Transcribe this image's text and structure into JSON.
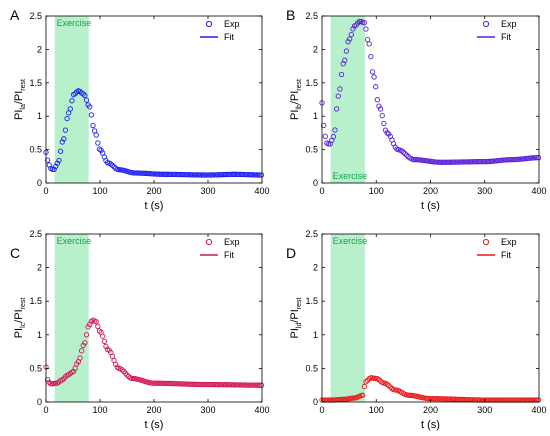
{
  "chart_data": [
    {
      "panel": "A",
      "type": "scatter",
      "color": "#1f1ff0",
      "ylabel": {
        "main": "PI",
        "sub1": "la",
        "sep": "/PI",
        "sub2": "rest"
      },
      "xlabel": "t  (s)",
      "xlim": [
        0,
        400
      ],
      "ylim": [
        0,
        2.5
      ],
      "xticks": [
        "0",
        "100",
        "200",
        "300",
        "400"
      ],
      "yticks": [
        "0",
        "0.5",
        "1",
        "1.5",
        "2",
        "2.5"
      ],
      "exercise": {
        "label": "Exercise",
        "x0": 16,
        "x1": 79,
        "label_pos": "top"
      },
      "legend": {
        "exp": "Exp",
        "fit": "Fit"
      },
      "key_points": [
        [
          0,
          0.46
        ],
        [
          4,
          0.32
        ],
        [
          8,
          0.22
        ],
        [
          14,
          0.2
        ],
        [
          22,
          0.3
        ],
        [
          32,
          0.65
        ],
        [
          42,
          1.05
        ],
        [
          52,
          1.33
        ],
        [
          60,
          1.38
        ],
        [
          70,
          1.33
        ],
        [
          80,
          1.15
        ],
        [
          90,
          0.78
        ],
        [
          100,
          0.5
        ],
        [
          115,
          0.3
        ],
        [
          135,
          0.2
        ],
        [
          165,
          0.15
        ],
        [
          220,
          0.13
        ],
        [
          300,
          0.12
        ],
        [
          350,
          0.13
        ],
        [
          400,
          0.12
        ]
      ],
      "series": [
        {
          "name": "Exp",
          "step": 3
        }
      ]
    },
    {
      "panel": "B",
      "type": "scatter",
      "color": "#5b1fd6",
      "ylabel": {
        "main": "PI",
        "sub1": "lb",
        "sep": "/PI",
        "sub2": "rest"
      },
      "xlabel": "t  (s)",
      "xlim": [
        0,
        400
      ],
      "ylim": [
        0,
        2.5
      ],
      "xticks": [
        "0",
        "100",
        "200",
        "300",
        "400"
      ],
      "yticks": [
        "0",
        "0.5",
        "1",
        "1.5",
        "2",
        "2.5"
      ],
      "exercise": {
        "label": "Exercise",
        "x0": 16,
        "x1": 79,
        "label_pos": "bottom"
      },
      "legend": {
        "exp": "Exp",
        "fit": "Fit"
      },
      "key_points": [
        [
          0,
          1.2
        ],
        [
          4,
          0.8
        ],
        [
          8,
          0.6
        ],
        [
          14,
          0.58
        ],
        [
          22,
          0.7
        ],
        [
          30,
          1.3
        ],
        [
          40,
          1.8
        ],
        [
          50,
          2.15
        ],
        [
          60,
          2.35
        ],
        [
          70,
          2.42
        ],
        [
          78,
          2.4
        ],
        [
          86,
          2.1
        ],
        [
          95,
          1.6
        ],
        [
          105,
          1.15
        ],
        [
          120,
          0.75
        ],
        [
          140,
          0.5
        ],
        [
          170,
          0.35
        ],
        [
          220,
          0.31
        ],
        [
          300,
          0.32
        ],
        [
          350,
          0.35
        ],
        [
          400,
          0.38
        ]
      ],
      "series": [
        {
          "name": "Exp",
          "step": 3
        }
      ]
    },
    {
      "panel": "C",
      "type": "scatter",
      "color": "#d01a5a",
      "ylabel": {
        "main": "PI",
        "sub1": "lc",
        "sep": "/PI",
        "sub2": "rest"
      },
      "xlabel": "t  (s)",
      "xlim": [
        0,
        400
      ],
      "ylim": [
        0,
        2.5
      ],
      "xticks": [
        "0",
        "100",
        "200",
        "300",
        "400"
      ],
      "yticks": [
        "0",
        "0.5",
        "1",
        "1.5",
        "2",
        "2.5"
      ],
      "exercise": {
        "label": "Exercise",
        "x0": 16,
        "x1": 79,
        "label_pos": "top"
      },
      "legend": {
        "exp": "Exp",
        "fit": "Fit"
      },
      "key_points": [
        [
          0,
          0.52
        ],
        [
          4,
          0.3
        ],
        [
          10,
          0.27
        ],
        [
          20,
          0.28
        ],
        [
          30,
          0.33
        ],
        [
          40,
          0.4
        ],
        [
          50,
          0.45
        ],
        [
          60,
          0.6
        ],
        [
          70,
          0.85
        ],
        [
          80,
          1.15
        ],
        [
          86,
          1.22
        ],
        [
          92,
          1.2
        ],
        [
          100,
          1.05
        ],
        [
          115,
          0.78
        ],
        [
          135,
          0.5
        ],
        [
          160,
          0.35
        ],
        [
          200,
          0.28
        ],
        [
          300,
          0.26
        ],
        [
          400,
          0.25
        ]
      ],
      "series": [
        {
          "name": "Exp",
          "step": 3
        }
      ]
    },
    {
      "panel": "D",
      "type": "scatter",
      "color": "#e81a1a",
      "ylabel": {
        "main": "PI",
        "sub1": "ld",
        "sep": "/PI",
        "sub2": "rest"
      },
      "xlabel": "t  (s)",
      "xlim": [
        0,
        400
      ],
      "ylim": [
        0,
        2.5
      ],
      "xticks": [
        "0",
        "100",
        "200",
        "300",
        "400"
      ],
      "yticks": [
        "0",
        "0.5",
        "1",
        "1.5",
        "2",
        "2.5"
      ],
      "exercise": {
        "label": "Exercise",
        "x0": 16,
        "x1": 79,
        "label_pos": "top"
      },
      "legend": {
        "exp": "Exp",
        "fit": "Fit"
      },
      "key_points": [
        [
          0,
          0.03
        ],
        [
          20,
          0.03
        ],
        [
          40,
          0.04
        ],
        [
          60,
          0.06
        ],
        [
          75,
          0.1
        ],
        [
          80,
          0.3
        ],
        [
          90,
          0.36
        ],
        [
          100,
          0.35
        ],
        [
          115,
          0.28
        ],
        [
          135,
          0.18
        ],
        [
          160,
          0.1
        ],
        [
          200,
          0.05
        ],
        [
          300,
          0.03
        ],
        [
          400,
          0.03
        ]
      ],
      "series": [
        {
          "name": "Exp",
          "step": 3
        }
      ]
    }
  ]
}
